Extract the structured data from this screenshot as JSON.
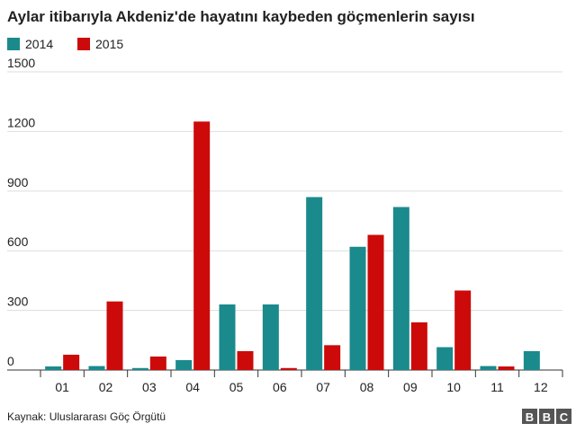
{
  "chart_data": {
    "type": "bar",
    "title": "Aylar itibarıyla Akdeniz'de hayatını kaybeden göçmenlerin sayısı",
    "categories": [
      "01",
      "02",
      "03",
      "04",
      "05",
      "06",
      "07",
      "08",
      "09",
      "10",
      "11",
      "12"
    ],
    "series": [
      {
        "name": "2014",
        "color": "#1b8a8c",
        "values": [
          18,
          20,
          10,
          50,
          330,
          330,
          870,
          620,
          820,
          115,
          20,
          95
        ]
      },
      {
        "name": "2015",
        "color": "#cc0a0a",
        "values": [
          77,
          345,
          68,
          1250,
          95,
          10,
          125,
          680,
          240,
          400,
          18,
          null
        ]
      }
    ],
    "ylim": [
      0,
      1500
    ],
    "yticks": [
      0,
      300,
      600,
      900,
      1200,
      1500
    ],
    "grid": true,
    "source": "Kaynak: Uluslararası Göç Örgütü",
    "logo": [
      "B",
      "B",
      "C"
    ]
  }
}
